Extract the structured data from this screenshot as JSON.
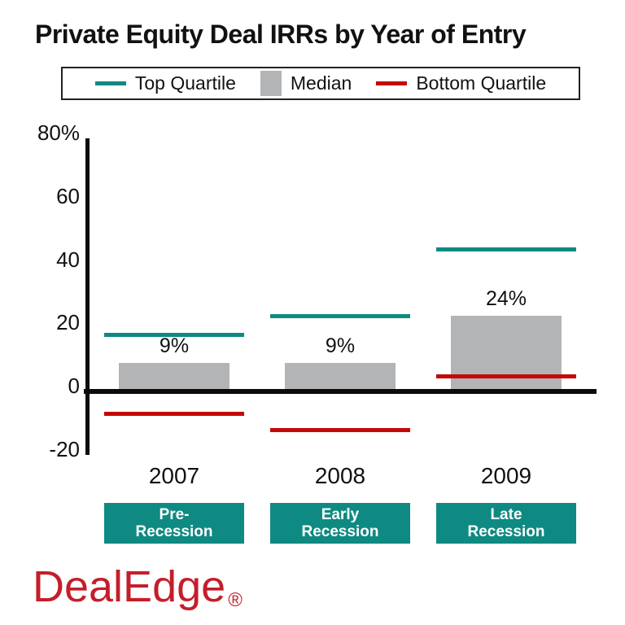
{
  "title": "Private Equity Deal IRRs by Year of Entry",
  "legend": {
    "items": [
      {
        "label": "Top Quartile",
        "swatch": "line",
        "color": "#0e8a82"
      },
      {
        "label": "Median",
        "swatch": "square",
        "color": "#b2b4b6"
      },
      {
        "label": "Bottom Quartile",
        "swatch": "line",
        "color": "#c50707"
      }
    ],
    "position": "top"
  },
  "chart_data": {
    "type": "bar",
    "title": "Private Equity Deal IRRs by Year of Entry",
    "categories": [
      "2007",
      "2008",
      "2009"
    ],
    "series": [
      {
        "name": "Top Quartile",
        "style": "dash-line",
        "color": "#0e8a82",
        "values": [
          18,
          24,
          45
        ]
      },
      {
        "name": "Median",
        "style": "bar",
        "color": "#b2b4b6",
        "values": [
          9,
          9,
          24
        ]
      },
      {
        "name": "Bottom Quartile",
        "style": "dash-line",
        "color": "#c50707",
        "values": [
          -7,
          -12,
          5
        ]
      }
    ],
    "median_value_labels": [
      "9%",
      "9%",
      "24%"
    ],
    "groups": [
      {
        "year": "2007",
        "phase_line1": "Pre-",
        "phase_line2": "Recession",
        "top_quartile": 18,
        "median": 9,
        "median_label": "9%",
        "bottom_quartile": -7
      },
      {
        "year": "2008",
        "phase_line1": "Early",
        "phase_line2": "Recession",
        "top_quartile": 24,
        "median": 9,
        "median_label": "9%",
        "bottom_quartile": -12
      },
      {
        "year": "2009",
        "phase_line1": "Late",
        "phase_line2": "Recession",
        "top_quartile": 45,
        "median": 24,
        "median_label": "24%",
        "bottom_quartile": 5
      }
    ],
    "y_ticks": [
      {
        "value": 80,
        "label": "80%"
      },
      {
        "value": 60,
        "label": "60"
      },
      {
        "value": 40,
        "label": "40"
      },
      {
        "value": 20,
        "label": "20"
      },
      {
        "value": 0,
        "label": "0"
      },
      {
        "value": -20,
        "label": "-20"
      }
    ],
    "ylim": [
      -20,
      80
    ],
    "xlabel": "",
    "ylabel": "",
    "grid": false,
    "legend_position": "top"
  },
  "colors": {
    "teal": "#0e8a82",
    "gray": "#b2b4b6",
    "red": "#c50707",
    "logo_red": "#c41e2b",
    "axis": "#0b0b0b"
  },
  "logo": {
    "text": "DealEdge",
    "registered": "®"
  }
}
